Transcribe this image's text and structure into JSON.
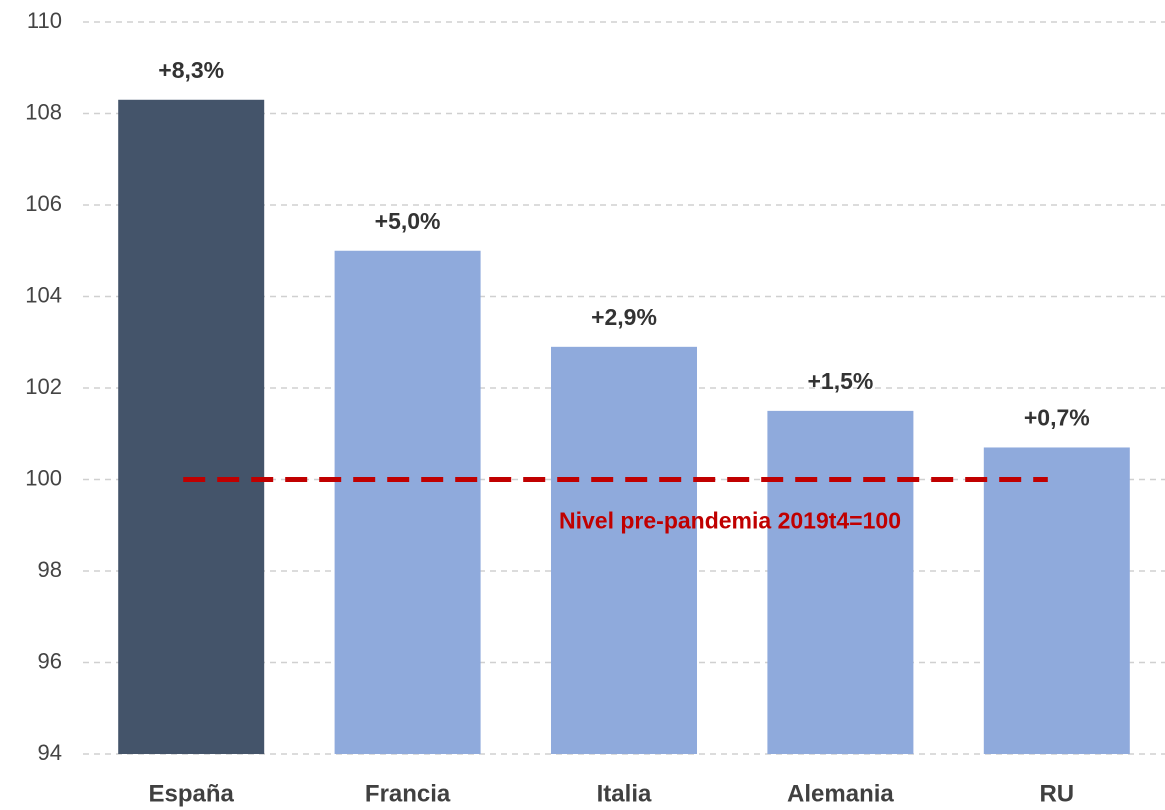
{
  "chart_data": {
    "type": "bar",
    "categories": [
      "España",
      "Francia",
      "Italia",
      "Alemania",
      "RU"
    ],
    "values": [
      108.3,
      105.0,
      102.9,
      101.5,
      100.7
    ],
    "value_labels": [
      "+8,3%",
      "+5,0%",
      "+2,9%",
      "+1,5%",
      "+0,7%"
    ],
    "colors": [
      "#44546a",
      "#8faadc",
      "#8faadc",
      "#8faadc",
      "#8faadc"
    ],
    "ylim": [
      94,
      110
    ],
    "yticks": [
      94,
      96,
      98,
      100,
      102,
      104,
      106,
      108,
      110
    ],
    "grid": true,
    "reference_line": {
      "value": 100,
      "label": "Nivel pre-pandemia 2019t4=100",
      "color": "#c00000"
    }
  }
}
